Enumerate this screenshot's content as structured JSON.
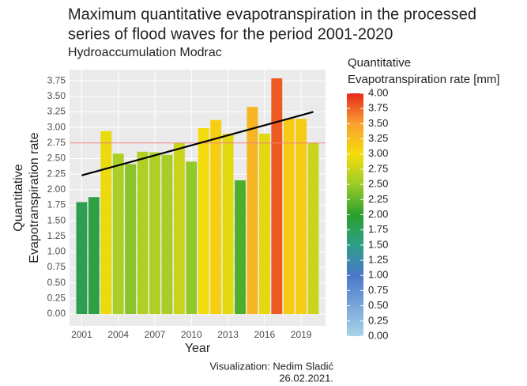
{
  "chart_data": {
    "type": "bar",
    "title": [
      "Maximum quantitative evapotranspiration in the processed",
      "series of flood waves for the period 2001-2020"
    ],
    "subtitle": "Hydroaccumulation Modrac",
    "xlabel": "Year",
    "ylabel": [
      "Quantitative",
      "Evapotranspiration rate"
    ],
    "legend_title": [
      "Quantitative",
      "Evapotranspiration rate [mm]"
    ],
    "caption": [
      "Visualization: Nedim Sladić",
      "26.02.2021."
    ],
    "x": [
      2001,
      2002,
      2003,
      2004,
      2005,
      2006,
      2007,
      2008,
      2009,
      2010,
      2011,
      2012,
      2013,
      2014,
      2015,
      2016,
      2017,
      2018,
      2019,
      2020
    ],
    "values": [
      1.8,
      1.88,
      2.94,
      2.58,
      2.41,
      2.61,
      2.6,
      2.56,
      2.75,
      2.45,
      2.99,
      3.12,
      2.9,
      2.15,
      3.33,
      2.9,
      3.79,
      3.14,
      3.14,
      2.75
    ],
    "xlim": [
      2000,
      2021
    ],
    "xticks": [
      2001,
      2004,
      2007,
      2010,
      2013,
      2016,
      2019
    ],
    "ylim": [
      -0.19,
      3.93
    ],
    "yticks": [
      {
        "value": 0,
        "label": "0.00"
      },
      {
        "value": 0.25,
        "label": "0.25"
      },
      {
        "value": 0.5,
        "label": "0.50"
      },
      {
        "value": 0.75,
        "label": "0.75"
      },
      {
        "value": 1,
        "label": "1.00"
      },
      {
        "value": 1.25,
        "label": "1.25"
      },
      {
        "value": 1.5,
        "label": "1.50"
      },
      {
        "value": 1.75,
        "label": "1.75"
      },
      {
        "value": 2,
        "label": "2.00"
      },
      {
        "value": 2.25,
        "label": "2.25"
      },
      {
        "value": 2.5,
        "label": "2.50"
      },
      {
        "value": 2.75,
        "label": "2.75"
      },
      {
        "value": 3,
        "label": "3.00"
      },
      {
        "value": 3.25,
        "label": "3.25"
      },
      {
        "value": 3.5,
        "label": "3.50"
      },
      {
        "value": 3.75,
        "label": "3.75"
      }
    ],
    "grid": true,
    "hline": {
      "value": 2.75,
      "color": "#f08080"
    },
    "trend": {
      "x": [
        2001,
        2020
      ],
      "values": [
        2.23,
        3.25
      ],
      "color": "#000000"
    },
    "colorscale": {
      "lim": [
        0,
        4
      ],
      "stops": [
        {
          "value": 0,
          "color": "#a8d4ea"
        },
        {
          "value": 1,
          "color": "#4a78c8"
        },
        {
          "value": 1.5,
          "color": "#2e9e8a"
        },
        {
          "value": 2,
          "color": "#2ca02c"
        },
        {
          "value": 2.5,
          "color": "#9ccc2a"
        },
        {
          "value": 3,
          "color": "#f5dc0a"
        },
        {
          "value": 3.5,
          "color": "#f8a030"
        },
        {
          "value": 4,
          "color": "#e8281a"
        }
      ],
      "ticks": [
        {
          "value": 0,
          "label": "0.00"
        },
        {
          "value": 0.25,
          "label": "0.25"
        },
        {
          "value": 0.5,
          "label": "0.50"
        },
        {
          "value": 0.75,
          "label": "0.75"
        },
        {
          "value": 1,
          "label": "1.00"
        },
        {
          "value": 1.25,
          "label": "1.25"
        },
        {
          "value": 1.5,
          "label": "1.50"
        },
        {
          "value": 1.75,
          "label": "1.75"
        },
        {
          "value": 2,
          "label": "2.00"
        },
        {
          "value": 2.25,
          "label": "2.25"
        },
        {
          "value": 2.5,
          "label": "2.50"
        },
        {
          "value": 2.75,
          "label": "2.75"
        },
        {
          "value": 3,
          "label": "3.00"
        },
        {
          "value": 3.25,
          "label": "3.25"
        },
        {
          "value": 3.5,
          "label": "3.50"
        },
        {
          "value": 3.75,
          "label": "3.75"
        },
        {
          "value": 4,
          "label": "4.00"
        }
      ]
    }
  }
}
